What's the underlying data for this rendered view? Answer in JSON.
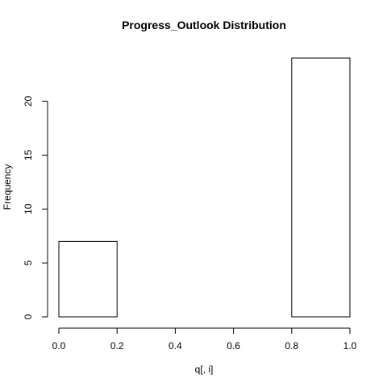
{
  "chart_data": {
    "type": "bar",
    "title": "Progress_Outlook Distribution",
    "xlabel": "q[, i]",
    "ylabel": "Frequency",
    "bins": [
      {
        "x0": 0.0,
        "x1": 0.2,
        "count": 7
      },
      {
        "x0": 0.2,
        "x1": 0.4,
        "count": 0
      },
      {
        "x0": 0.4,
        "x1": 0.6,
        "count": 0
      },
      {
        "x0": 0.6,
        "x1": 0.8,
        "count": 0
      },
      {
        "x0": 0.8,
        "x1": 1.0,
        "count": 24
      }
    ],
    "xlim": [
      0,
      1
    ],
    "ylim": [
      0,
      24
    ],
    "x_ticks": [
      0.0,
      0.2,
      0.4,
      0.6,
      0.8,
      1.0
    ],
    "x_tick_labels": [
      "0.0",
      "0.2",
      "0.4",
      "0.6",
      "0.8",
      "1.0"
    ],
    "y_ticks": [
      0,
      5,
      10,
      15,
      20
    ],
    "y_tick_labels": [
      "0",
      "5",
      "10",
      "15",
      "20"
    ],
    "grid": false,
    "legend": "none"
  }
}
